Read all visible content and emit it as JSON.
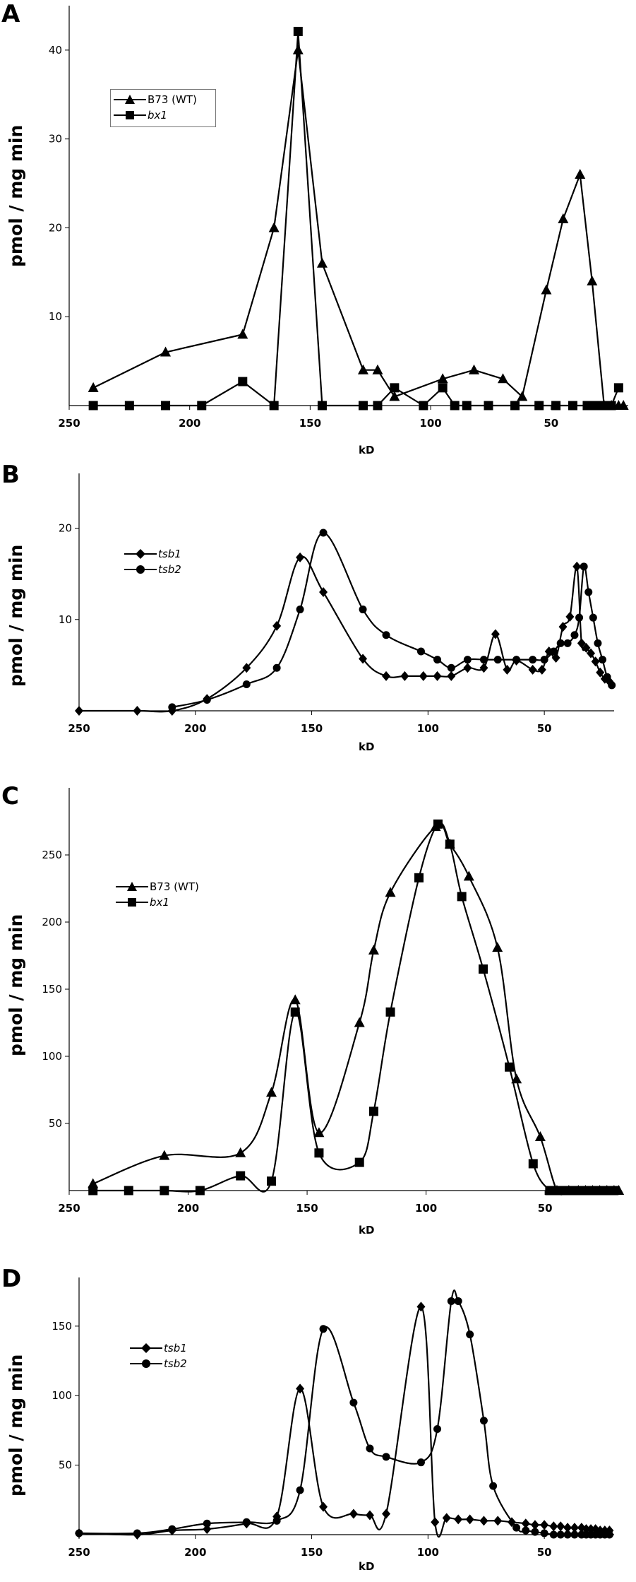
{
  "chart_data": [
    {
      "panel": "A",
      "type": "line",
      "title": "",
      "xlabel": "kD",
      "ylabel": "pmol / mg min",
      "xlim": [
        250,
        18
      ],
      "ylim": [
        0,
        45
      ],
      "xticks": [
        250,
        200,
        150,
        100,
        50
      ],
      "yticks": [
        10,
        20,
        30,
        40
      ],
      "smooth": false,
      "legend_position": "top-left",
      "series": [
        {
          "name": "B73 (WT)",
          "marker": "triangle",
          "italic": false,
          "x": [
            240,
            210,
            178,
            165,
            155,
            145,
            128,
            122,
            115,
            95,
            82,
            70,
            62,
            52,
            45,
            38,
            33,
            28,
            25,
            22,
            20
          ],
          "y": [
            2,
            6,
            8,
            20,
            40,
            16,
            4,
            4,
            1,
            3,
            4,
            3,
            1,
            13,
            21,
            26,
            14,
            0,
            0,
            0,
            0
          ]
        },
        {
          "name": "bx1",
          "marker": "square",
          "italic": true,
          "x": [
            240,
            225,
            210,
            195,
            178,
            165,
            155,
            145,
            128,
            122,
            115,
            103,
            95,
            90,
            85,
            76,
            65,
            55,
            48,
            41,
            35,
            32,
            30,
            28,
            25,
            22
          ],
          "y": [
            0,
            0,
            0,
            0,
            2.7,
            0,
            42.1,
            0,
            0,
            0,
            2,
            0,
            2,
            0,
            0,
            0,
            0,
            0,
            0,
            0,
            0,
            0,
            0,
            0,
            0,
            2
          ]
        }
      ]
    },
    {
      "panel": "B",
      "type": "line",
      "title": "",
      "xlabel": "kD",
      "ylabel": "pmol / mg min",
      "xlim": [
        250,
        20
      ],
      "ylim": [
        0,
        26
      ],
      "xticks": [
        250,
        200,
        150,
        100,
        50
      ],
      "yticks": [
        10,
        20
      ],
      "smooth": true,
      "legend_position": "top-left",
      "series": [
        {
          "name": "tsb1",
          "marker": "diamond",
          "italic": true,
          "x": [
            250,
            225,
            210,
            195,
            178,
            165,
            155,
            145,
            128,
            118,
            110,
            102,
            96,
            90,
            83,
            76,
            71,
            66,
            62,
            55,
            51,
            48,
            45,
            42,
            39,
            36,
            34,
            32,
            30,
            28,
            26,
            24,
            22
          ],
          "y": [
            0,
            0,
            0,
            1.3,
            4.7,
            9.3,
            16.8,
            13,
            5.7,
            3.8,
            3.8,
            3.8,
            3.8,
            3.8,
            4.7,
            4.7,
            8.4,
            4.5,
            5.5,
            4.5,
            4.5,
            6.5,
            5.8,
            9.2,
            10.3,
            15.8,
            7.4,
            6.9,
            6.3,
            5.4,
            4.2,
            3.5,
            3.2
          ]
        },
        {
          "name": "tsb2",
          "marker": "circle",
          "italic": true,
          "x": [
            210,
            195,
            178,
            165,
            155,
            145,
            128,
            118,
            103,
            96,
            90,
            83,
            76,
            70,
            62,
            55,
            50,
            46,
            43,
            40,
            37,
            35,
            33,
            31,
            29,
            27,
            25,
            23,
            21
          ],
          "y": [
            0.4,
            1.2,
            2.9,
            4.7,
            11.1,
            19.5,
            11.1,
            8.3,
            6.5,
            5.6,
            4.7,
            5.6,
            5.6,
            5.6,
            5.6,
            5.6,
            5.6,
            6.5,
            7.4,
            7.4,
            8.3,
            10.2,
            15.8,
            13,
            10.2,
            7.4,
            5.6,
            3.7,
            2.8
          ]
        }
      ]
    },
    {
      "panel": "C",
      "type": "line",
      "title": "",
      "xlabel": "kD",
      "ylabel": "pmol / mg min",
      "xlim": [
        250,
        18
      ],
      "ylim": [
        0,
        300
      ],
      "xticks": [
        250,
        200,
        150,
        100,
        50
      ],
      "yticks": [
        50,
        100,
        150,
        200,
        250
      ],
      "smooth": true,
      "legend_position": "top-left",
      "series": [
        {
          "name": "B73 (WT)",
          "marker": "triangle",
          "italic": false,
          "x": [
            240,
            210,
            178,
            165,
            155,
            145,
            128,
            122,
            115,
            96,
            90,
            82,
            70,
            62,
            52,
            45,
            40,
            36,
            33,
            30,
            27,
            24,
            21,
            19
          ],
          "y": [
            5,
            26,
            28,
            73,
            142,
            43,
            125,
            179,
            222,
            271,
            258,
            234,
            181,
            83,
            40,
            0,
            0,
            0,
            0,
            0,
            0,
            0,
            0,
            0
          ]
        },
        {
          "name": "bx1",
          "marker": "square",
          "italic": true,
          "x": [
            240,
            225,
            210,
            195,
            178,
            165,
            155,
            145,
            128,
            122,
            115,
            103,
            95,
            90,
            85,
            76,
            65,
            55,
            48,
            45,
            42,
            39,
            36,
            33,
            30,
            27,
            24,
            21
          ],
          "y": [
            0,
            0,
            0,
            0,
            11,
            7,
            133,
            28,
            21,
            59,
            133,
            233,
            273,
            258,
            219,
            165,
            92,
            20,
            0,
            0,
            0,
            0,
            0,
            0,
            0,
            0,
            0,
            0
          ]
        }
      ]
    },
    {
      "panel": "D",
      "type": "line",
      "title": "",
      "xlabel": "kD",
      "ylabel": "pmol / mg min",
      "xlim": [
        250,
        20
      ],
      "ylim": [
        0,
        185
      ],
      "xticks": [
        250,
        200,
        150,
        100,
        50
      ],
      "yticks": [
        50,
        100,
        150
      ],
      "smooth": true,
      "legend_position": "top-left",
      "series": [
        {
          "name": "tsb1",
          "marker": "diamond",
          "italic": true,
          "x": [
            250,
            225,
            210,
            195,
            178,
            165,
            155,
            145,
            132,
            125,
            118,
            103,
            97,
            92,
            87,
            82,
            76,
            70,
            64,
            58,
            54,
            50,
            46,
            43,
            40,
            37,
            34,
            32,
            30,
            28,
            26,
            24,
            22
          ],
          "y": [
            1,
            0,
            3,
            4,
            8,
            13,
            105,
            20,
            15,
            14,
            15,
            164,
            9,
            12,
            11,
            11,
            10,
            10,
            9,
            8,
            7,
            7,
            6,
            6,
            5,
            5,
            5,
            4,
            4,
            4,
            3,
            3,
            3
          ]
        },
        {
          "name": "tsb2",
          "marker": "circle",
          "italic": true,
          "x": [
            250,
            225,
            210,
            195,
            178,
            165,
            155,
            145,
            132,
            125,
            118,
            103,
            96,
            90,
            87,
            82,
            76,
            72,
            62,
            58,
            54,
            50,
            46,
            43,
            40,
            37,
            34,
            32,
            30,
            28,
            26,
            24,
            22
          ],
          "y": [
            1,
            1,
            4,
            8,
            9,
            10,
            32,
            148,
            95,
            62,
            56,
            52,
            76,
            168,
            168,
            144,
            82,
            35,
            5,
            3,
            2,
            1,
            0,
            0,
            0,
            0,
            0,
            0,
            0,
            0,
            0,
            0,
            0
          ]
        }
      ]
    }
  ]
}
